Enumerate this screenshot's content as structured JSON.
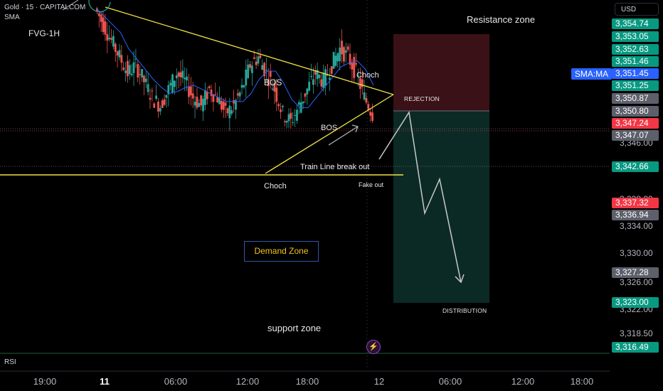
{
  "header": {
    "symbol": "Gold · 15 · CAPITALCOM",
    "indicator": "SMA",
    "currency": "USD"
  },
  "annotations": {
    "fvg": "FVG-1H",
    "resistance_zone": "Resistance zone",
    "bos_top": "BOS",
    "bos_mid": "BOS",
    "choch_top": "Choch",
    "choch_bottom": "Choch",
    "rejection": "REJECTION",
    "trend_break": "Train Line break out",
    "fake_out": "Fake out",
    "distribution": "DISTRIBUTION",
    "demand_zone": "Demand Zone",
    "support_zone": "support zone"
  },
  "sma_pill": "SMA:MA",
  "rsi_label": "RSI",
  "icons": {
    "lightning": "lightning-icon"
  },
  "price_axis": {
    "ticks": [
      "3,346.00",
      "3,338.00",
      "3,334.00",
      "3,330.00",
      "3,326.00",
      "3,322.00",
      "3,318.50"
    ],
    "badges": [
      {
        "value": "3,354.74",
        "color": "#089981"
      },
      {
        "value": "3,353.05",
        "color": "#089981"
      },
      {
        "value": "3,352.63",
        "color": "#089981"
      },
      {
        "value": "3,351.46",
        "color": "#089981"
      },
      {
        "value": "3,351.45",
        "color": "#2962ff"
      },
      {
        "value": "3,351.25",
        "color": "#089981"
      },
      {
        "value": "3,350.87",
        "color": "#5d606b"
      },
      {
        "value": "3,350.80",
        "color": "#5d606b"
      },
      {
        "value": "3,347.24",
        "color": "#f23645"
      },
      {
        "value": "3,347.07",
        "color": "#5d606b"
      },
      {
        "value": "3,342.66",
        "color": "#089981"
      },
      {
        "value": "3,337.32",
        "color": "#f23645"
      },
      {
        "value": "3,336.94",
        "color": "#5d606b"
      },
      {
        "value": "3,327.28",
        "color": "#5d606b"
      },
      {
        "value": "3,323.00",
        "color": "#089981"
      },
      {
        "value": "3,316.49",
        "color": "#089981"
      }
    ]
  },
  "time_axis": [
    "19:00",
    "11",
    "06:00",
    "12:00",
    "18:00",
    "12",
    "06:00",
    "12:00",
    "18:00"
  ],
  "colors": {
    "up": "#26a69a",
    "down": "#ef5350",
    "sma": "#2962ff",
    "trend": "#f0e442",
    "background": "#000000"
  },
  "chart_data": {
    "type": "candlestick",
    "symbol": "Gold",
    "timeframe": "15",
    "y_range": [
      3315,
      3357
    ],
    "x": [
      "19:00",
      "11",
      "06:00",
      "12:00",
      "18:00",
      "12",
      "06:00",
      "12:00",
      "18:00"
    ],
    "close_series": [
      3356,
      3354,
      3352,
      3350,
      3348,
      3349,
      3347,
      3345,
      3344,
      3346,
      3348,
      3347,
      3345,
      3344,
      3346,
      3345,
      3343,
      3344,
      3346,
      3349,
      3350,
      3348,
      3346,
      3343,
      3342,
      3344,
      3346,
      3348,
      3347,
      3349,
      3351,
      3350,
      3348,
      3345,
      3343
    ]
  }
}
